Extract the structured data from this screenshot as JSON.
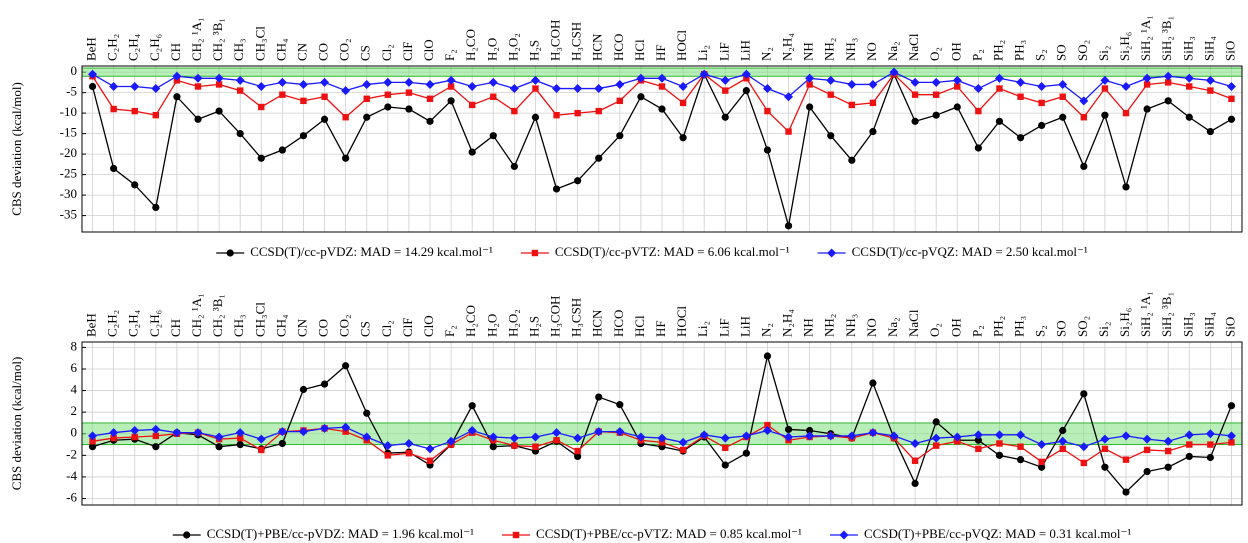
{
  "chart_data": [
    {
      "type": "line",
      "ylabel": "CBS deviation (kcal/mol)",
      "categories": [
        "BeH",
        "C₂H₂",
        "C₂H₄",
        "C₂H₆",
        "CH",
        "CH₂ ¹A₁",
        "CH₂ ³B₁",
        "CH₃",
        "CH₃Cl",
        "CH₄",
        "CN",
        "CO",
        "CO₂",
        "CS",
        "Cl₂",
        "ClF",
        "ClO",
        "F₂",
        "H₂CO",
        "H₂O",
        "H₂O₂",
        "H₂S",
        "H₃COH",
        "H₃CSH",
        "HCN",
        "HCO",
        "HCl",
        "HF",
        "HOCl",
        "Li₂",
        "LiF",
        "LiH",
        "N₂",
        "N₂H₄",
        "NH",
        "NH₂",
        "NH₃",
        "NO",
        "Na₂",
        "NaCl",
        "O₂",
        "OH",
        "P₂",
        "PH₂",
        "PH₃",
        "S₂",
        "SO",
        "SO₂",
        "Si₂",
        "Si₂H₆",
        "SiH₂ ¹A₁",
        "SiH₂ ³B₁",
        "SiH₃",
        "SiH₄",
        "SiO"
      ],
      "ylim": [
        -39,
        1.5
      ],
      "yticks": [
        0,
        -5,
        -10,
        -15,
        -20,
        -25,
        -30,
        -35
      ],
      "grid": true,
      "band": [
        -1,
        1
      ],
      "band_color": "#7ee07e",
      "series": [
        {
          "name": "CCSD(T)/cc-pVDZ: MAD = 14.29 kcal.mol⁻¹",
          "color": "#000000",
          "marker": "circle",
          "values": [
            -3.5,
            -23.5,
            -27.5,
            -33,
            -6,
            -11.5,
            -9.5,
            -15,
            -21,
            -19,
            -15.5,
            -11.5,
            -21,
            -11,
            -8.5,
            -9,
            -12,
            -7,
            -19.5,
            -15.5,
            -23,
            -11,
            -28.5,
            -26.5,
            -21,
            -15.5,
            -6,
            -9,
            -16,
            -0.5,
            -11,
            -4.5,
            -19,
            -37.5,
            -8.5,
            -15.5,
            -21.5,
            -14.5,
            -0.5,
            -12,
            -10.5,
            -8.5,
            -18.5,
            -12,
            -16,
            -13,
            -11,
            -23,
            -10.5,
            -28,
            -9,
            -7,
            -11,
            -14.5,
            -11.5
          ]
        },
        {
          "name": "CCSD(T)/cc-pVTZ: MAD = 6.06 kcal.mol⁻¹",
          "color": "#ee1111",
          "marker": "square",
          "values": [
            -1,
            -9,
            -9.5,
            -10.5,
            -2,
            -3.5,
            -3,
            -4.5,
            -8.5,
            -5.5,
            -7,
            -6,
            -11,
            -6.5,
            -5.5,
            -5,
            -6.5,
            -3.5,
            -8,
            -6,
            -9.5,
            -4,
            -10.5,
            -10,
            -9.5,
            -7,
            -2,
            -3.5,
            -7.5,
            -0.5,
            -4.5,
            -1.5,
            -9.5,
            -14.5,
            -3,
            -5.5,
            -8,
            -7.5,
            -0.5,
            -5.5,
            -5.5,
            -3.5,
            -9.5,
            -4,
            -6,
            -7.5,
            -6,
            -11,
            -4,
            -10,
            -3,
            -2.5,
            -3.5,
            -4.5,
            -6.5
          ]
        },
        {
          "name": "CCSD(T)/cc-pVQZ: MAD = 2.50 kcal.mol⁻¹",
          "color": "#1a1aff",
          "marker": "diamond",
          "values": [
            -0.5,
            -3.5,
            -3.5,
            -4,
            -1,
            -1.5,
            -1.5,
            -2,
            -3.5,
            -2.5,
            -3,
            -2.5,
            -4.5,
            -3,
            -2.5,
            -2.5,
            -3,
            -2,
            -3.5,
            -2.5,
            -4,
            -2,
            -4,
            -4,
            -4,
            -3,
            -1.5,
            -1.5,
            -3.5,
            -0.5,
            -2,
            -0.5,
            -4,
            -6,
            -1.5,
            -2,
            -3,
            -3,
            0,
            -2.5,
            -2.5,
            -2,
            -4,
            -1.5,
            -2.5,
            -3.5,
            -3,
            -7,
            -2,
            -3.5,
            -1.5,
            -1,
            -1.5,
            -2,
            -3.5
          ]
        }
      ]
    },
    {
      "type": "line",
      "ylabel": "CBS deviation (kcal/mol)",
      "categories": [
        "BeH",
        "C₂H₂",
        "C₂H₄",
        "C₂H₆",
        "CH",
        "CH₂ ¹A₁",
        "CH₂ ³B₁",
        "CH₃",
        "CH₃Cl",
        "CH₄",
        "CN",
        "CO",
        "CO₂",
        "CS",
        "Cl₂",
        "ClF",
        "ClO",
        "F₂",
        "H₂CO",
        "H₂O",
        "H₂O₂",
        "H₂S",
        "H₃COH",
        "H₃CSH",
        "HCN",
        "HCO",
        "HCl",
        "HF",
        "HOCl",
        "Li₂",
        "LiF",
        "LiH",
        "N₂",
        "N₂H₄",
        "NH",
        "NH₂",
        "NH₃",
        "NO",
        "Na₂",
        "NaCl",
        "O₂",
        "OH",
        "P₂",
        "PH₂",
        "PH₃",
        "S₂",
        "SO",
        "SO₂",
        "Si₂",
        "Si₂H₆",
        "SiH₂ ¹A₁",
        "SiH₂ ³B₁",
        "SiH₃",
        "SiH₄",
        "SiO"
      ],
      "ylim": [
        -6.6,
        8.5
      ],
      "yticks": [
        -6,
        -4,
        -2,
        0,
        2,
        4,
        6,
        8
      ],
      "grid": true,
      "band": [
        -1,
        1
      ],
      "band_color": "#7ee07e",
      "series": [
        {
          "name": "CCSD(T)+PBE/cc-pVDZ: MAD = 1.96 kcal.mol⁻¹",
          "color": "#000000",
          "marker": "circle",
          "values": [
            -1.2,
            -0.6,
            -0.5,
            -1.2,
            0.1,
            -0.1,
            -1.2,
            -1.0,
            -1.4,
            -0.9,
            4.1,
            4.6,
            6.3,
            1.9,
            -1.8,
            -1.7,
            -2.9,
            -1.0,
            2.6,
            -1.2,
            -1.1,
            -1.6,
            -0.7,
            -2.1,
            3.4,
            2.7,
            -0.9,
            -1.2,
            -1.6,
            -0.3,
            -2.9,
            -1.8,
            7.2,
            0.4,
            0.3,
            0,
            -0.4,
            4.7,
            -0.4,
            -4.6,
            1.1,
            -0.6,
            -0.6,
            -2.0,
            -2.4,
            -3.1,
            0.3,
            3.7,
            -3.1,
            -5.4,
            -3.5,
            -3.1,
            -2.1,
            -2.2,
            2.6
          ]
        },
        {
          "name": "CCSD(T)+PBE/cc-pVTZ: MAD = 0.85 kcal.mol⁻¹",
          "color": "#ee1111",
          "marker": "square",
          "values": [
            -0.7,
            -0.4,
            -0.3,
            -0.2,
            0,
            0.1,
            -0.5,
            -0.4,
            -1.5,
            0.2,
            0.3,
            0.5,
            0.2,
            -0.6,
            -2.0,
            -1.8,
            -2.5,
            -1.0,
            0.1,
            -0.6,
            -1.1,
            -1.2,
            -0.6,
            -1.6,
            0.2,
            0.1,
            -0.6,
            -0.8,
            -1.5,
            -0.2,
            -1.3,
            -0.3,
            0.8,
            -0.6,
            -0.3,
            -0.2,
            -0.4,
            0.1,
            -0.4,
            -2.5,
            -1.1,
            -0.7,
            -1.4,
            -0.9,
            -1.2,
            -2.6,
            -1.4,
            -2.7,
            -1.4,
            -2.4,
            -1.5,
            -1.6,
            -1.0,
            -1.0,
            -0.8
          ]
        },
        {
          "name": "CCSD(T)+PBE/cc-pVQZ: MAD = 0.31 kcal.mol⁻¹",
          "color": "#1a1aff",
          "marker": "diamond",
          "values": [
            -0.2,
            0.1,
            0.3,
            0.4,
            0.1,
            0.1,
            -0.3,
            0.1,
            -0.5,
            0.2,
            0.2,
            0.5,
            0.6,
            -0.3,
            -1.1,
            -0.9,
            -1.4,
            -0.7,
            0.3,
            -0.3,
            -0.4,
            -0.3,
            0.1,
            -0.4,
            0.2,
            0.2,
            -0.3,
            -0.4,
            -0.8,
            -0.1,
            -0.4,
            -0.2,
            0.3,
            -0.3,
            -0.2,
            -0.2,
            -0.2,
            0.1,
            -0.2,
            -0.9,
            -0.4,
            -0.3,
            -0.1,
            -0.1,
            -0.1,
            -1.0,
            -0.7,
            -1.2,
            -0.5,
            -0.2,
            -0.5,
            -0.7,
            -0.1,
            0.0,
            -0.2
          ]
        }
      ]
    }
  ]
}
